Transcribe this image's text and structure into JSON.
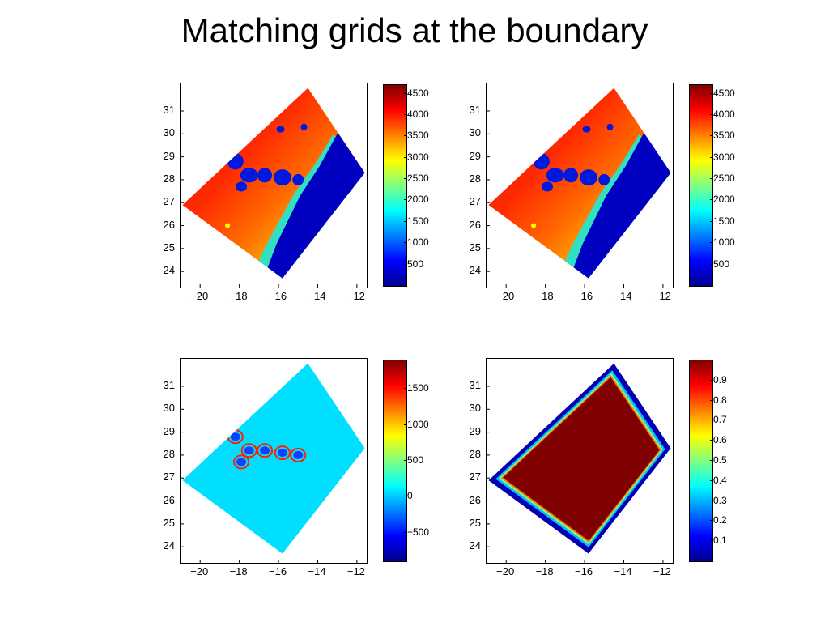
{
  "title": "Matching grids at the boundary",
  "colors": {
    "jet": [
      "#00008f",
      "#0000ff",
      "#0080ff",
      "#00ffff",
      "#80ff80",
      "#ffff00",
      "#ff8000",
      "#ff0000",
      "#800000"
    ],
    "ocean": "#0000c0",
    "land_low": "#ffff00",
    "boundary_field": "#00dfff"
  },
  "chart_data": [
    {
      "type": "heatmap",
      "id": "top-left",
      "field": "bathymetry",
      "xlim": [
        -21,
        -11.5
      ],
      "ylim": [
        23.3,
        32.2
      ],
      "xticks": [
        -20,
        -18,
        -16,
        -14,
        -12
      ],
      "yticks": [
        24,
        25,
        26,
        27,
        28,
        29,
        30,
        31
      ],
      "colorbar": {
        "range": [
          0,
          4700
        ],
        "ticks": [
          "4500",
          "4000",
          "3500",
          "3000",
          "2500",
          "2000",
          "1500",
          "1000",
          "500"
        ],
        "tick_values": [
          4500,
          4000,
          3500,
          3000,
          2500,
          2000,
          1500,
          1000,
          500
        ]
      }
    },
    {
      "type": "heatmap",
      "id": "top-right",
      "field": "bathymetry",
      "xlim": [
        -21,
        -11.5
      ],
      "ylim": [
        23.3,
        32.2
      ],
      "xticks": [
        -20,
        -18,
        -16,
        -14,
        -12
      ],
      "yticks": [
        24,
        25,
        26,
        27,
        28,
        29,
        30,
        31
      ],
      "colorbar": {
        "range": [
          0,
          4700
        ],
        "ticks": [
          "4500",
          "4000",
          "3500",
          "3000",
          "2500",
          "2000",
          "1500",
          "1000",
          "500"
        ],
        "tick_values": [
          4500,
          4000,
          3500,
          3000,
          2500,
          2000,
          1500,
          1000,
          500
        ]
      }
    },
    {
      "type": "heatmap",
      "id": "bottom-left",
      "field": "difference",
      "xlim": [
        -21,
        -11.5
      ],
      "ylim": [
        23.3,
        32.2
      ],
      "xticks": [
        -20,
        -18,
        -16,
        -14,
        -12
      ],
      "yticks": [
        24,
        25,
        26,
        27,
        28,
        29,
        30,
        31
      ],
      "colorbar": {
        "range": [
          -900,
          1900
        ],
        "ticks": [
          "1500",
          "1000",
          "500",
          "0",
          "−500"
        ],
        "tick_values": [
          1500,
          1000,
          500,
          0,
          -500
        ]
      }
    },
    {
      "type": "heatmap",
      "id": "bottom-right",
      "field": "weight",
      "xlim": [
        -21,
        -11.5
      ],
      "ylim": [
        23.3,
        32.2
      ],
      "xticks": [
        -20,
        -18,
        -16,
        -14,
        -12
      ],
      "yticks": [
        24,
        25,
        26,
        27,
        28,
        29,
        30,
        31
      ],
      "colorbar": {
        "range": [
          0,
          1
        ],
        "ticks": [
          "0.9",
          "0.8",
          "0.7",
          "0.6",
          "0.5",
          "0.4",
          "0.3",
          "0.2",
          "0.1"
        ],
        "tick_values": [
          0.9,
          0.8,
          0.7,
          0.6,
          0.5,
          0.4,
          0.3,
          0.2,
          0.1
        ]
      }
    }
  ]
}
